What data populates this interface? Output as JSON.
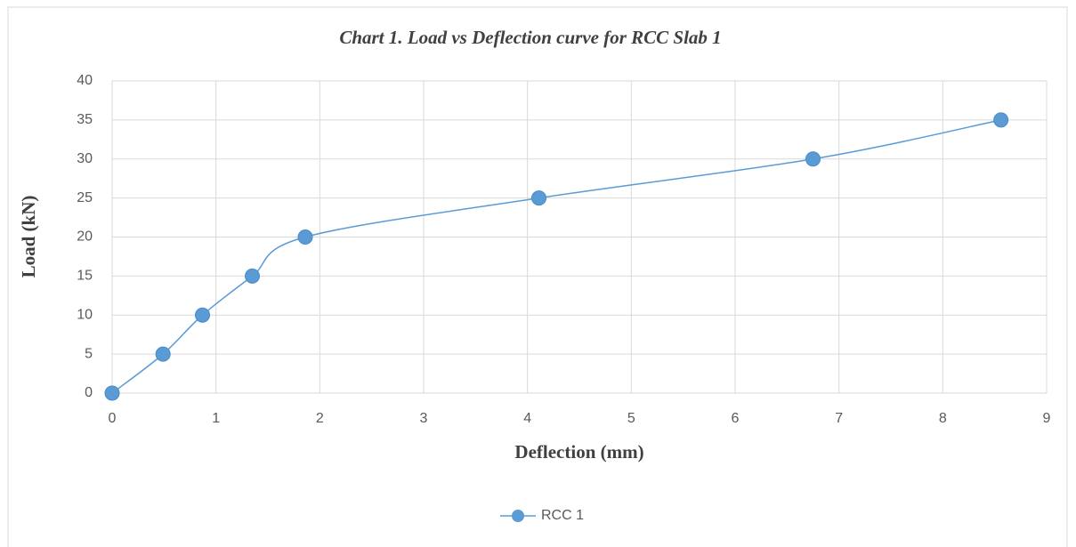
{
  "chart_data": {
    "type": "line",
    "smooth": true,
    "title": "Chart 1. Load vs Deflection curve for RCC Slab 1",
    "xlabel": "Deflection (mm)",
    "ylabel": "Load (kN)",
    "x": [
      0,
      0.49,
      0.87,
      1.35,
      1.86,
      4.11,
      6.75,
      8.56
    ],
    "series": [
      {
        "name": "RCC 1",
        "color": "#5b9bd5",
        "values": [
          0,
          5,
          10,
          15,
          20,
          25,
          30,
          35
        ]
      }
    ],
    "xlim": [
      0,
      9
    ],
    "xticks": [
      0,
      1,
      2,
      3,
      4,
      5,
      6,
      7,
      8,
      9
    ],
    "ylim": [
      0,
      40
    ],
    "yticks": [
      0,
      5,
      10,
      15,
      20,
      25,
      30,
      35,
      40
    ],
    "grid": true,
    "legend": "bottom"
  }
}
